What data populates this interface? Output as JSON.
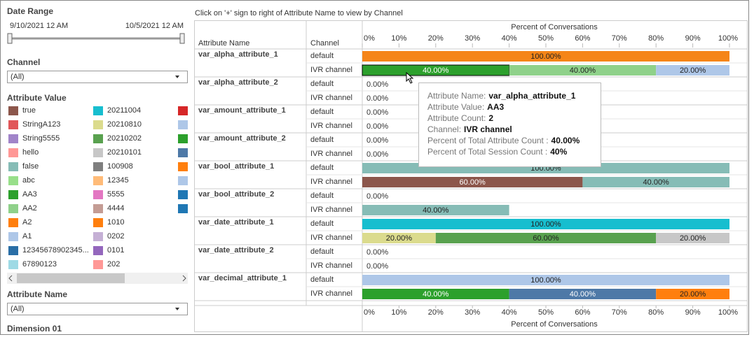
{
  "sidebar": {
    "date_range": {
      "title": "Date Range",
      "start": "9/10/2021 12 AM",
      "end": "10/5/2021 12 AM"
    },
    "channel": {
      "title": "Channel",
      "selected": "(All)"
    },
    "attribute_value": {
      "title": "Attribute Value",
      "items": [
        {
          "label": "true",
          "color": "#8c564b"
        },
        {
          "label": "StringA123",
          "color": "#e15759"
        },
        {
          "label": "String5555",
          "color": "#a184c9"
        },
        {
          "label": "hello",
          "color": "#ff9896"
        },
        {
          "label": "false",
          "color": "#86bcb6"
        },
        {
          "label": "abc",
          "color": "#98df8a"
        },
        {
          "label": "AA3",
          "color": "#2ca02c"
        },
        {
          "label": "AA2",
          "color": "#8fd18a"
        },
        {
          "label": "A2",
          "color": "#ff7f0e"
        },
        {
          "label": "A1",
          "color": "#aec7e8"
        },
        {
          "label": "12345678902345...",
          "color": "#2a6ea6"
        },
        {
          "label": "67890123",
          "color": "#9edae5"
        },
        {
          "label": "20211004",
          "color": "#17becf"
        },
        {
          "label": "20210810",
          "color": "#dbdb8d"
        },
        {
          "label": "20210202",
          "color": "#59a14f"
        },
        {
          "label": "20210101",
          "color": "#c7c7c7"
        },
        {
          "label": "100908",
          "color": "#7f7f7f"
        },
        {
          "label": "12345",
          "color": "#ffbb78"
        },
        {
          "label": "5555",
          "color": "#e377c2"
        },
        {
          "label": "4444",
          "color": "#c49c94"
        },
        {
          "label": "1010",
          "color": "#ff7f0e"
        },
        {
          "label": "0202",
          "color": "#c5b0d5"
        },
        {
          "label": "0101",
          "color": "#9467bd"
        },
        {
          "label": "202",
          "color": "#ff9896"
        }
      ],
      "extra_colors": [
        "#d62728",
        "#aec7e8",
        "#2ca02c",
        "#4e79a7",
        "#ff7f0e",
        "#aec7e8",
        "#1f77b4",
        "#1f77b4"
      ]
    },
    "attribute_name": {
      "title": "Attribute Name",
      "selected": "(All)"
    },
    "dimension": {
      "title": "Dimension 01"
    }
  },
  "view": {
    "instruction": "Click on '+' sign to right of Attribute Name to view by Channel",
    "headers": {
      "attribute_name": "Attribute Name",
      "channel": "Channel"
    },
    "axis_title": "Percent of Conversations",
    "xlim": [
      0,
      100
    ],
    "xticks": [
      {
        "value": 0,
        "label": "0%"
      },
      {
        "value": 10,
        "label": "10%"
      },
      {
        "value": 20,
        "label": "20%"
      },
      {
        "value": 30,
        "label": "30%"
      },
      {
        "value": 40,
        "label": "40%"
      },
      {
        "value": 50,
        "label": "50%"
      },
      {
        "value": 60,
        "label": "60%"
      },
      {
        "value": 70,
        "label": "70%"
      },
      {
        "value": 80,
        "label": "80%"
      },
      {
        "value": 90,
        "label": "90%"
      },
      {
        "value": 100,
        "label": "100%"
      }
    ],
    "rows": [
      {
        "name": "var_alpha_attribute_1",
        "channels": [
          {
            "name": "default",
            "segments": [
              {
                "value": 100,
                "label": "100.00%",
                "color": "#f58518"
              }
            ]
          },
          {
            "name": "IVR channel",
            "segments": [
              {
                "value": 40,
                "label": "40.00%",
                "color": "#2ca02c",
                "selected": true
              },
              {
                "value": 40,
                "label": "40.00%",
                "color": "#8fd18a"
              },
              {
                "value": 20,
                "label": "20.00%",
                "color": "#aec7e8"
              }
            ]
          }
        ]
      },
      {
        "name": "var_alpha_attribute_2",
        "channels": [
          {
            "name": "default",
            "segments": [
              {
                "value": 0,
                "label": "0.00%"
              }
            ]
          },
          {
            "name": "IVR channel",
            "segments": [
              {
                "value": 0,
                "label": "0.00%"
              }
            ]
          }
        ]
      },
      {
        "name": "var_amount_attribute_1",
        "channels": [
          {
            "name": "default",
            "segments": [
              {
                "value": 0,
                "label": "0.00%"
              }
            ]
          },
          {
            "name": "IVR channel",
            "segments": [
              {
                "value": 0,
                "label": "0.00%"
              }
            ]
          }
        ]
      },
      {
        "name": "var_amount_attribute_2",
        "channels": [
          {
            "name": "default",
            "segments": [
              {
                "value": 0,
                "label": "0.00%"
              }
            ]
          },
          {
            "name": "IVR channel",
            "segments": [
              {
                "value": 0,
                "label": "0.00%"
              }
            ]
          }
        ]
      },
      {
        "name": "var_bool_attribute_1",
        "channels": [
          {
            "name": "default",
            "segments": [
              {
                "value": 100,
                "label": "100.00%",
                "color": "#86bcb6"
              }
            ]
          },
          {
            "name": "IVR channel",
            "segments": [
              {
                "value": 60,
                "label": "60.00%",
                "color": "#8c564b"
              },
              {
                "value": 40,
                "label": "40.00%",
                "color": "#86bcb6"
              }
            ]
          }
        ]
      },
      {
        "name": "var_bool_attribute_2",
        "channels": [
          {
            "name": "default",
            "segments": [
              {
                "value": 0,
                "label": "0.00%"
              }
            ]
          },
          {
            "name": "IVR channel",
            "segments": [
              {
                "value": 40,
                "label": "40.00%",
                "color": "#86bcb6"
              }
            ]
          }
        ]
      },
      {
        "name": "var_date_attribute_1",
        "channels": [
          {
            "name": "default",
            "segments": [
              {
                "value": 100,
                "label": "100.00%",
                "color": "#17becf"
              }
            ]
          },
          {
            "name": "IVR channel",
            "segments": [
              {
                "value": 20,
                "label": "20.00%",
                "color": "#dbdb8d"
              },
              {
                "value": 60,
                "label": "60.00%",
                "color": "#59a14f"
              },
              {
                "value": 20,
                "label": "20.00%",
                "color": "#c7c7c7"
              }
            ]
          }
        ]
      },
      {
        "name": "var_date_attribute_2",
        "channels": [
          {
            "name": "default",
            "segments": [
              {
                "value": 0,
                "label": "0.00%"
              }
            ]
          },
          {
            "name": "IVR channel",
            "segments": [
              {
                "value": 0,
                "label": "0.00%"
              }
            ]
          }
        ]
      },
      {
        "name": "var_decimal_attribute_1",
        "channels": [
          {
            "name": "default",
            "segments": [
              {
                "value": 100,
                "label": "100.00%",
                "color": "#aec7e8"
              }
            ]
          },
          {
            "name": "IVR channel",
            "segments": [
              {
                "value": 40,
                "label": "40.00%",
                "color": "#2ca02c"
              },
              {
                "value": 40,
                "label": "40.00%",
                "color": "#4e79a7"
              },
              {
                "value": 20,
                "label": "20.00%",
                "color": "#ff7f0e"
              }
            ]
          }
        ]
      }
    ],
    "tooltip": {
      "lines": [
        {
          "label": "Attribute Name:",
          "value": "var_alpha_attribute_1"
        },
        {
          "label": "Attribute Value:",
          "value": "AA3"
        },
        {
          "label": "Attribute Count:",
          "value": "2"
        },
        {
          "label": "Channel:",
          "value": "IVR channel"
        },
        {
          "label": "Percent of Total Attribute Count :",
          "value": "40.00%"
        },
        {
          "label": "Percent of Total Session Count :",
          "value": "40%"
        }
      ]
    }
  }
}
